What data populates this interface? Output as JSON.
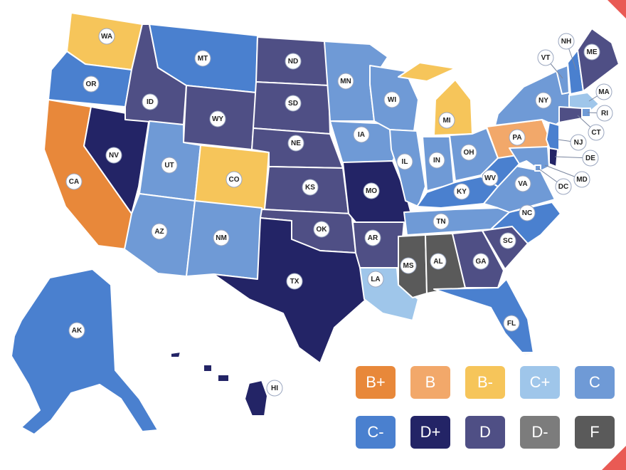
{
  "grade_colors": {
    "B+": "#e8883a",
    "B": "#f2a86a",
    "B-": "#f6c55a",
    "C+": "#9fc6ea",
    "C": "#6f9ad6",
    "C-": "#4a80cf",
    "D+": "#232466",
    "D": "#4f4f85",
    "D-": "#7c7c7c",
    "F": "#5a5a5a"
  },
  "legend": [
    {
      "grade": "B+",
      "label": "B+"
    },
    {
      "grade": "B",
      "label": "B"
    },
    {
      "grade": "B-",
      "label": "B-"
    },
    {
      "grade": "C+",
      "label": "C+"
    },
    {
      "grade": "C",
      "label": "C"
    },
    {
      "grade": "C-",
      "label": "C-"
    },
    {
      "grade": "D+",
      "label": "D+"
    },
    {
      "grade": "D",
      "label": "D"
    },
    {
      "grade": "D-",
      "label": "D-"
    },
    {
      "grade": "F",
      "label": "F"
    }
  ],
  "states": [
    {
      "code": "WA",
      "grade": "B-"
    },
    {
      "code": "OR",
      "grade": "C-"
    },
    {
      "code": "CA",
      "grade": "B+"
    },
    {
      "code": "NV",
      "grade": "D+"
    },
    {
      "code": "ID",
      "grade": "D"
    },
    {
      "code": "MT",
      "grade": "C-"
    },
    {
      "code": "WY",
      "grade": "D"
    },
    {
      "code": "UT",
      "grade": "C"
    },
    {
      "code": "CO",
      "grade": "B-"
    },
    {
      "code": "AZ",
      "grade": "C"
    },
    {
      "code": "NM",
      "grade": "C"
    },
    {
      "code": "ND",
      "grade": "D"
    },
    {
      "code": "SD",
      "grade": "D"
    },
    {
      "code": "NE",
      "grade": "D"
    },
    {
      "code": "KS",
      "grade": "D"
    },
    {
      "code": "OK",
      "grade": "D"
    },
    {
      "code": "TX",
      "grade": "D+"
    },
    {
      "code": "MN",
      "grade": "C"
    },
    {
      "code": "IA",
      "grade": "C"
    },
    {
      "code": "MO",
      "grade": "D+"
    },
    {
      "code": "AR",
      "grade": "D"
    },
    {
      "code": "LA",
      "grade": "C+"
    },
    {
      "code": "WI",
      "grade": "C"
    },
    {
      "code": "IL",
      "grade": "C"
    },
    {
      "code": "MI",
      "grade": "B-"
    },
    {
      "code": "IN",
      "grade": "C"
    },
    {
      "code": "OH",
      "grade": "C"
    },
    {
      "code": "KY",
      "grade": "C-"
    },
    {
      "code": "TN",
      "grade": "C"
    },
    {
      "code": "MS",
      "grade": "F"
    },
    {
      "code": "AL",
      "grade": "F"
    },
    {
      "code": "GA",
      "grade": "D"
    },
    {
      "code": "FL",
      "grade": "C-"
    },
    {
      "code": "SC",
      "grade": "D"
    },
    {
      "code": "NC",
      "grade": "C-"
    },
    {
      "code": "VA",
      "grade": "C"
    },
    {
      "code": "WV",
      "grade": "C-"
    },
    {
      "code": "PA",
      "grade": "B"
    },
    {
      "code": "NY",
      "grade": "C"
    },
    {
      "code": "VT",
      "grade": "C"
    },
    {
      "code": "NH",
      "grade": "C-"
    },
    {
      "code": "ME",
      "grade": "D"
    },
    {
      "code": "MA",
      "grade": "C+"
    },
    {
      "code": "RI",
      "grade": "C"
    },
    {
      "code": "CT",
      "grade": "D"
    },
    {
      "code": "NJ",
      "grade": "C-"
    },
    {
      "code": "DE",
      "grade": "D+"
    },
    {
      "code": "MD",
      "grade": "C"
    },
    {
      "code": "DC",
      "grade": "C"
    },
    {
      "code": "AK",
      "grade": "C-"
    },
    {
      "code": "HI",
      "grade": "D+"
    }
  ]
}
